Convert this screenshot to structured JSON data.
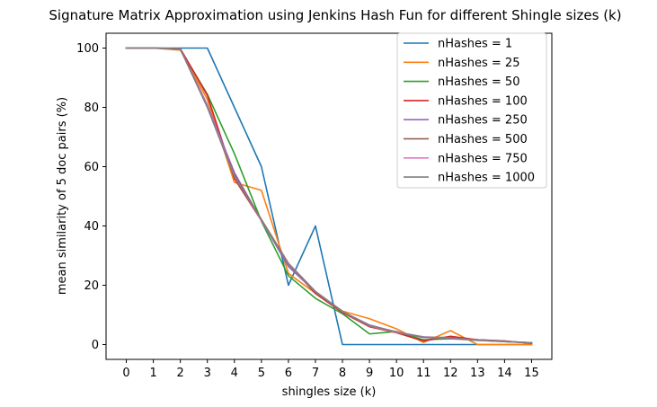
{
  "chart_data": {
    "type": "line",
    "title": "Signature Matrix Approximation using Jenkins Hash Fun for different Shingle sizes (k)",
    "xlabel": "shingles size (k)",
    "ylabel": "mean similarity of 5 doc pairs (%)",
    "x": [
      0,
      1,
      2,
      3,
      4,
      5,
      6,
      7,
      8,
      9,
      10,
      11,
      12,
      13,
      14,
      15
    ],
    "xlim": [
      -0.75,
      15.75
    ],
    "ylim": [
      -5,
      105
    ],
    "xticks": [
      0,
      1,
      2,
      3,
      4,
      5,
      6,
      7,
      8,
      9,
      10,
      11,
      12,
      13,
      14,
      15
    ],
    "yticks": [
      0,
      20,
      40,
      60,
      80,
      100
    ],
    "grid": false,
    "legend_position": "top-right",
    "series": [
      {
        "name": "nHashes = 1",
        "color": "#1f77b4",
        "values": [
          100,
          100,
          100,
          100,
          80,
          60,
          20,
          40,
          0,
          0,
          0,
          0,
          0,
          0,
          0,
          0
        ]
      },
      {
        "name": "nHashes = 25",
        "color": "#ff7f0e",
        "values": [
          100,
          100,
          99.3,
          82.7,
          54.7,
          52,
          24,
          17.3,
          11.3,
          8.7,
          5.3,
          0.7,
          4.7,
          0,
          0,
          0
        ]
      },
      {
        "name": "nHashes = 50",
        "color": "#2ca02c",
        "values": [
          100,
          100,
          99.6,
          84.4,
          64.4,
          41.6,
          23.2,
          15.6,
          10.4,
          3.6,
          4.4,
          1.6,
          2,
          1.6,
          1.2,
          0.4
        ]
      },
      {
        "name": "nHashes = 100",
        "color": "#d62728",
        "values": [
          100,
          100,
          99.8,
          84,
          56,
          41.8,
          27.2,
          17.2,
          10.8,
          6,
          4,
          1.2,
          2.8,
          1.6,
          1.2,
          0.4
        ]
      },
      {
        "name": "nHashes = 250",
        "color": "#9467bd",
        "values": [
          100,
          100,
          99.7,
          80.8,
          58,
          41.9,
          26.3,
          17.7,
          11.1,
          6.6,
          4.2,
          2.6,
          2.2,
          1.4,
          1.1,
          0.6
        ]
      },
      {
        "name": "nHashes = 500",
        "color": "#8c564b",
        "values": [
          100,
          100,
          99.7,
          80.2,
          57.2,
          42.2,
          27.4,
          17.9,
          11.2,
          6.2,
          4.2,
          2.4,
          2.4,
          1.6,
          1,
          0.6
        ]
      },
      {
        "name": "nHashes = 750",
        "color": "#e377c2",
        "values": [
          100,
          100,
          99.7,
          80.4,
          56.8,
          41.9,
          27.2,
          17.8,
          11.1,
          6.3,
          4.1,
          2.5,
          2.1,
          1.5,
          1,
          0.6
        ]
      },
      {
        "name": "nHashes = 1000",
        "color": "#7f7f7f",
        "values": [
          100,
          100,
          99.7,
          80,
          56.6,
          42.1,
          27,
          17.8,
          11.1,
          6.4,
          4.3,
          2.4,
          2,
          1.4,
          1,
          0.6
        ]
      }
    ]
  }
}
